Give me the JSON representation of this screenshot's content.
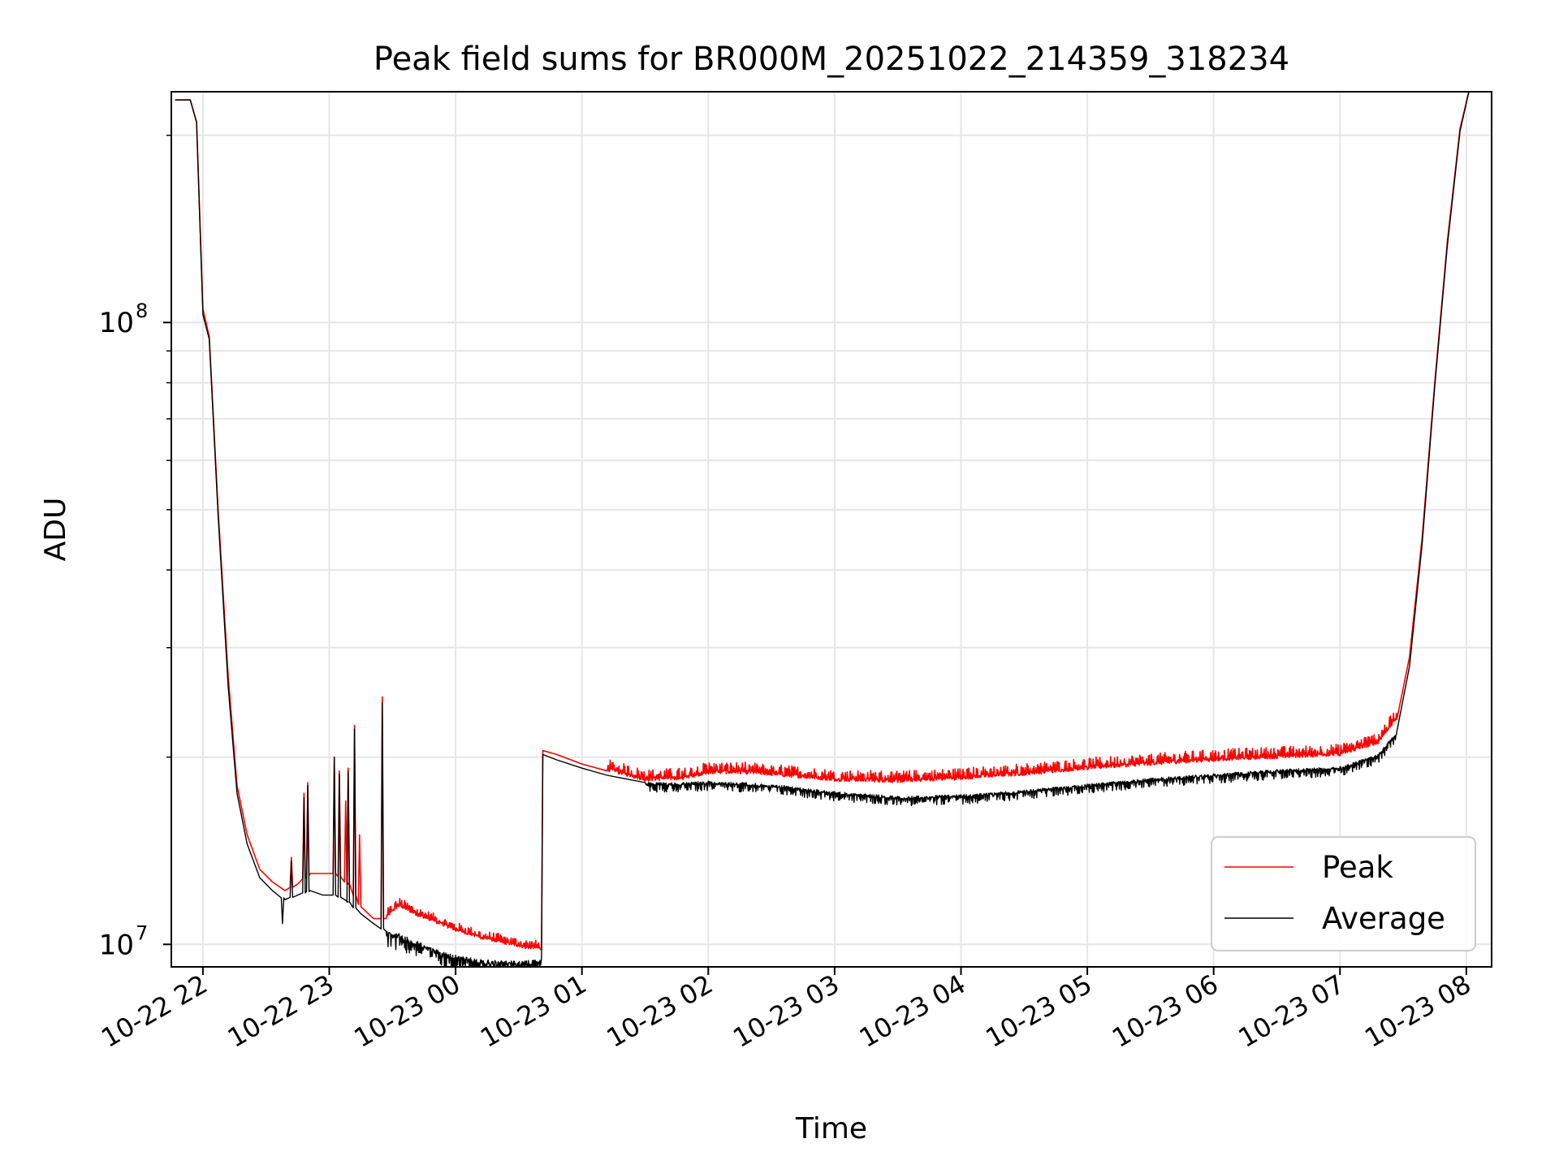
{
  "chart_data": {
    "type": "line",
    "title": "Peak field sums for BR000M_20251022_214359_318234",
    "xlabel": "Time",
    "ylabel": "ADU",
    "yscale": "log",
    "ylim": [
      9200000.0,
      235000000.0
    ],
    "xlim": [
      -0.25,
      10.2
    ],
    "grid": true,
    "legend_position": "lower-right",
    "x_ticks": [
      {
        "value": 0,
        "label": "10-22 22"
      },
      {
        "value": 1,
        "label": "10-22 23"
      },
      {
        "value": 2,
        "label": "10-23 00"
      },
      {
        "value": 3,
        "label": "10-23 01"
      },
      {
        "value": 4,
        "label": "10-23 02"
      },
      {
        "value": 5,
        "label": "10-23 03"
      },
      {
        "value": 6,
        "label": "10-23 04"
      },
      {
        "value": 7,
        "label": "10-23 05"
      },
      {
        "value": 8,
        "label": "10-23 06"
      },
      {
        "value": 9,
        "label": "10-23 07"
      },
      {
        "value": 10,
        "label": "10-23 08"
      }
    ],
    "y_ticks": [
      {
        "value": 10000000,
        "base": "10",
        "exp": "7"
      },
      {
        "value": 100000000,
        "base": "10",
        "exp": "8"
      }
    ],
    "y_minor_ticks": [
      20000000,
      30000000,
      40000000,
      50000000,
      60000000,
      70000000,
      80000000,
      90000000,
      200000000
    ],
    "x_unit": "hours after 10-22 22:00",
    "series": [
      {
        "name": "Peak",
        "color": "#ff0000",
        "points": [
          [
            -0.22,
            228000000.0
          ],
          [
            -0.1,
            228000000.0
          ],
          [
            -0.05,
            210000000.0
          ],
          [
            0.0,
            105000000.0
          ],
          [
            0.05,
            95000000.0
          ],
          [
            0.12,
            50000000.0
          ],
          [
            0.2,
            27000000.0
          ],
          [
            0.27,
            18000000.0
          ],
          [
            0.35,
            15000000.0
          ],
          [
            0.45,
            13200000.0
          ],
          [
            0.55,
            12600000.0
          ],
          [
            0.65,
            12200000.0
          ],
          [
            0.75,
            12500000.0
          ],
          [
            0.85,
            13000000.0
          ],
          [
            0.95,
            13000000.0
          ],
          [
            1.05,
            13000000.0
          ],
          [
            1.15,
            12500000.0
          ],
          [
            1.25,
            11500000.0
          ],
          [
            1.35,
            11000000.0
          ],
          [
            1.45,
            11000000.0
          ],
          [
            1.55,
            11500000.0
          ],
          [
            1.7,
            11100000.0
          ],
          [
            1.85,
            10800000.0
          ],
          [
            2.0,
            10500000.0
          ],
          [
            2.2,
            10200000.0
          ],
          [
            2.4,
            10000000.0
          ],
          [
            2.55,
            9850000.0
          ],
          [
            2.68,
            9800000.0
          ],
          [
            2.69,
            20500000.0
          ],
          [
            2.8,
            20200000.0
          ],
          [
            3.0,
            19500000.0
          ],
          [
            3.2,
            19000000.0
          ],
          [
            3.5,
            18300000.0
          ],
          [
            3.8,
            18400000.0
          ],
          [
            4.0,
            18800000.0
          ],
          [
            4.3,
            18800000.0
          ],
          [
            4.6,
            18600000.0
          ],
          [
            5.0,
            18300000.0
          ],
          [
            5.5,
            18200000.0
          ],
          [
            6.0,
            18400000.0
          ],
          [
            6.5,
            18700000.0
          ],
          [
            7.0,
            19100000.0
          ],
          [
            7.5,
            19400000.0
          ],
          [
            8.0,
            19700000.0
          ],
          [
            8.5,
            19900000.0
          ],
          [
            9.0,
            20100000.0
          ],
          [
            9.3,
            21000000.0
          ],
          [
            9.45,
            23000000.0
          ],
          [
            9.55,
            29000000.0
          ],
          [
            9.65,
            45000000.0
          ],
          [
            9.75,
            80000000.0
          ],
          [
            9.85,
            135000000.0
          ],
          [
            9.95,
            205000000.0
          ],
          [
            10.02,
            235000000.0
          ]
        ]
      },
      {
        "name": "Average",
        "color": "#000000",
        "points": [
          [
            -0.22,
            228000000.0
          ],
          [
            -0.1,
            228000000.0
          ],
          [
            -0.05,
            210000000.0
          ],
          [
            0.0,
            103000000.0
          ],
          [
            0.05,
            94000000.0
          ],
          [
            0.12,
            49000000.0
          ],
          [
            0.2,
            26000000.0
          ],
          [
            0.27,
            17500000.0
          ],
          [
            0.35,
            14500000.0
          ],
          [
            0.45,
            12800000.0
          ],
          [
            0.55,
            12200000.0
          ],
          [
            0.65,
            11800000.0
          ],
          [
            0.75,
            12000000.0
          ],
          [
            0.85,
            12200000.0
          ],
          [
            0.95,
            12000000.0
          ],
          [
            1.05,
            12000000.0
          ],
          [
            1.15,
            11700000.0
          ],
          [
            1.25,
            11200000.0
          ],
          [
            1.35,
            10800000.0
          ],
          [
            1.45,
            10500000.0
          ],
          [
            1.55,
            10400000.0
          ],
          [
            1.7,
            10100000.0
          ],
          [
            1.85,
            9800000.0
          ],
          [
            2.0,
            9600000.0
          ],
          [
            2.2,
            9450000.0
          ],
          [
            2.4,
            9400000.0
          ],
          [
            2.55,
            9400000.0
          ],
          [
            2.68,
            9500000.0
          ],
          [
            2.69,
            20200000.0
          ],
          [
            2.8,
            19800000.0
          ],
          [
            3.0,
            19200000.0
          ],
          [
            3.2,
            18700000.0
          ],
          [
            3.5,
            18200000.0
          ],
          [
            3.8,
            18200000.0
          ],
          [
            4.0,
            18300000.0
          ],
          [
            4.3,
            18200000.0
          ],
          [
            4.6,
            18000000.0
          ],
          [
            5.0,
            17600000.0
          ],
          [
            5.5,
            17300000.0
          ],
          [
            6.0,
            17400000.0
          ],
          [
            6.5,
            17700000.0
          ],
          [
            7.0,
            18100000.0
          ],
          [
            7.5,
            18500000.0
          ],
          [
            8.0,
            18800000.0
          ],
          [
            8.5,
            19100000.0
          ],
          [
            9.0,
            19300000.0
          ],
          [
            9.3,
            20200000.0
          ],
          [
            9.45,
            22000000.0
          ],
          [
            9.55,
            28000000.0
          ],
          [
            9.65,
            44000000.0
          ],
          [
            9.75,
            79000000.0
          ],
          [
            9.85,
            133000000.0
          ],
          [
            9.95,
            203000000.0
          ],
          [
            10.02,
            235000000.0
          ]
        ]
      }
    ],
    "spikes": [
      {
        "series": "Peak",
        "x": 0.7,
        "y": 13800000.0
      },
      {
        "series": "Peak",
        "x": 0.8,
        "y": 17500000.0
      },
      {
        "series": "Peak",
        "x": 0.83,
        "y": 18200000.0
      },
      {
        "series": "Peak",
        "x": 1.04,
        "y": 20000000.0
      },
      {
        "series": "Peak",
        "x": 1.08,
        "y": 19000000.0
      },
      {
        "series": "Peak",
        "x": 1.13,
        "y": 17000000.0
      },
      {
        "series": "Peak",
        "x": 1.15,
        "y": 19200000.0
      },
      {
        "series": "Peak",
        "x": 1.2,
        "y": 22500000.0
      },
      {
        "series": "Peak",
        "x": 1.24,
        "y": 15000000.0
      },
      {
        "series": "Peak",
        "x": 1.42,
        "y": 25000000.0
      },
      {
        "series": "Average",
        "x": 0.63,
        "y": 10800000.0
      },
      {
        "series": "Average",
        "x": 0.7,
        "y": 13600000.0
      },
      {
        "series": "Average",
        "x": 0.8,
        "y": 17200000.0
      },
      {
        "series": "Average",
        "x": 0.83,
        "y": 18000000.0
      },
      {
        "series": "Average",
        "x": 1.04,
        "y": 20000000.0
      },
      {
        "series": "Average",
        "x": 1.08,
        "y": 18800000.0
      },
      {
        "series": "Average",
        "x": 1.15,
        "y": 19000000.0
      },
      {
        "series": "Average",
        "x": 1.2,
        "y": 22200000.0
      },
      {
        "series": "Average",
        "x": 1.42,
        "y": 24500000.0
      },
      {
        "series": "Average",
        "x": 2.45,
        "y": 9100000.0
      }
    ],
    "noise": [
      {
        "series": "Peak",
        "from": 1.45,
        "to": 2.68,
        "amp": 0.035,
        "dir": 1
      },
      {
        "series": "Average",
        "from": 1.45,
        "to": 2.68,
        "amp": 0.06,
        "dir": -1
      },
      {
        "series": "Peak",
        "from": 3.2,
        "to": 9.45,
        "amp": 0.045,
        "dir": 1
      },
      {
        "series": "Average",
        "from": 3.5,
        "to": 9.45,
        "amp": 0.035,
        "dir": -1
      }
    ]
  }
}
